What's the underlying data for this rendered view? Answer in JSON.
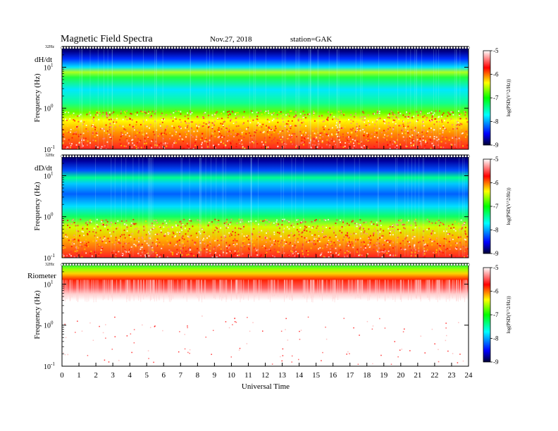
{
  "header": {
    "title": "Magnetic  Field  Spectra",
    "date": "Nov.27, 2018",
    "station": "station=GAK"
  },
  "chart_data": [
    {
      "type": "heatmap",
      "panel_label": "dH/dt",
      "ylabel": "Frequency  (Hz)",
      "top_label": "32Hz",
      "y_scale": "log",
      "ylim": [
        0.1,
        32
      ],
      "xlim": [
        0,
        24
      ],
      "colorbar": {
        "label": "log(PSD(V^2/Hz))",
        "range": [
          -9,
          -5
        ],
        "ticks": [
          "-5",
          "-6",
          "-7",
          "-8",
          "-9"
        ]
      }
    },
    {
      "type": "heatmap",
      "panel_label": "dD/dt",
      "ylabel": "Frequency  (Hz)",
      "top_label": "32Hz",
      "y_scale": "log",
      "ylim": [
        0.1,
        32
      ],
      "xlim": [
        0,
        24
      ],
      "colorbar": {
        "label": "log(PSD(V^2/Hz))",
        "range": [
          -9,
          -5
        ],
        "ticks": [
          "-5",
          "-6",
          "-7",
          "-8",
          "-9"
        ]
      }
    },
    {
      "type": "heatmap",
      "panel_label": "Riometer",
      "ylabel": "Frequency  (Hz)",
      "top_label": "32Hz",
      "y_scale": "log",
      "ylim": [
        0.1,
        32
      ],
      "xlim": [
        0,
        24
      ],
      "xlabel": "Universal Time",
      "x_ticks": [
        "0",
        "1",
        "2",
        "3",
        "4",
        "5",
        "6",
        "7",
        "8",
        "9",
        "10",
        "11",
        "12",
        "13",
        "14",
        "15",
        "16",
        "17",
        "18",
        "19",
        "20",
        "21",
        "22",
        "23",
        "24"
      ],
      "colorbar": {
        "label": "log(PSD(V^2/Hz))",
        "range": [
          -9,
          -5
        ],
        "ticks": [
          "-5",
          "-6",
          "-7",
          "-8",
          "-9"
        ]
      }
    }
  ],
  "y_ticks": [
    {
      "value": 10,
      "mantissa": "10",
      "exp": "1"
    },
    {
      "value": 1,
      "mantissa": "10",
      "exp": "0"
    },
    {
      "value": 0.1,
      "mantissa": "10",
      "exp": "-1"
    }
  ],
  "colormap": [
    "#000033",
    "#0000ff",
    "#00ffff",
    "#00ff00",
    "#ffff00",
    "#ff0000",
    "#ffffff"
  ]
}
